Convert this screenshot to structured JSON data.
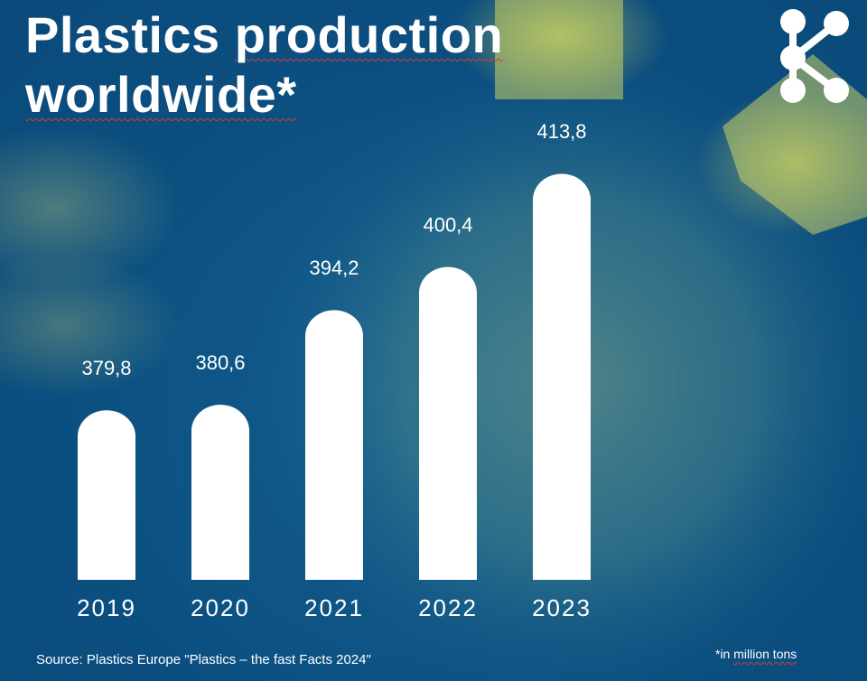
{
  "title": {
    "line1_word1": "Plastics",
    "line1_word2": "production",
    "line2": "worldwide*"
  },
  "source": "Source: Plastics Europe \"Plastics – the fast Facts 2024\"",
  "footnote": {
    "prefix": "*in ",
    "text": "million tons"
  },
  "logo_icon": "molecule-share-icon",
  "colors": {
    "background": "#0b4f80",
    "accent_yellow": "#e8e24a",
    "bar": "#ffffff",
    "text": "#ffffff"
  },
  "chart_data": {
    "type": "bar",
    "categories": [
      "2019",
      "2020",
      "2021",
      "2022",
      "2023"
    ],
    "values": [
      379.8,
      380.6,
      394.2,
      400.4,
      413.8
    ],
    "value_labels": [
      "379,8",
      "380,6",
      "394,2",
      "400,4",
      "413,8"
    ],
    "title": "Plastics production worldwide*",
    "xlabel": "",
    "ylabel": "",
    "ylim": [
      355,
      415
    ],
    "grid": false,
    "legend": "none"
  }
}
